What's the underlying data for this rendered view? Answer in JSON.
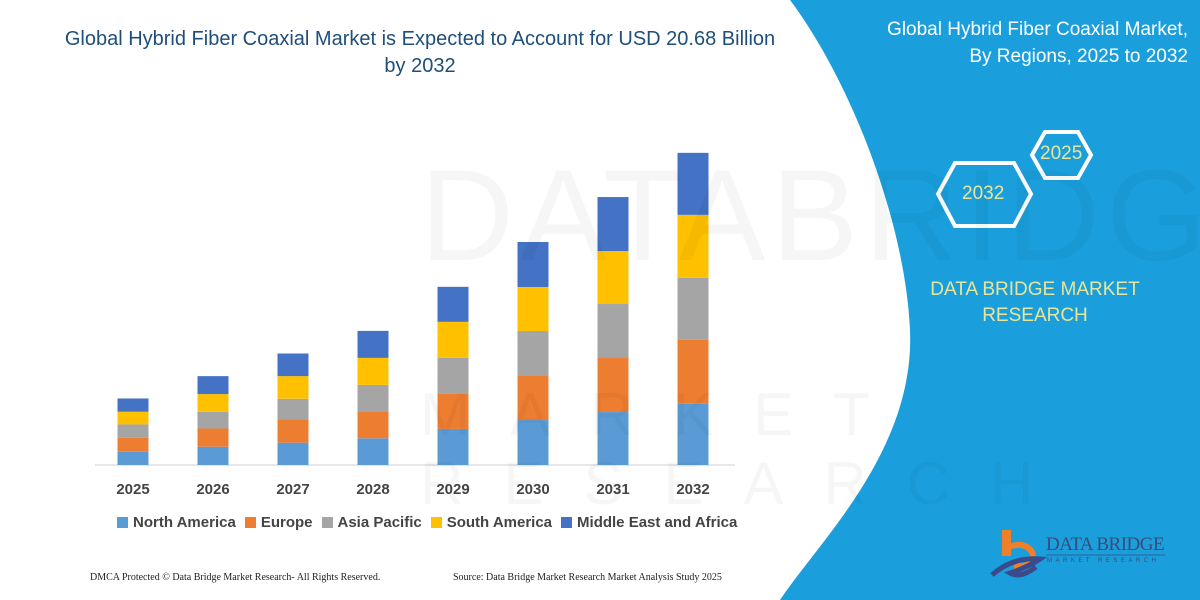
{
  "title": "Global Hybrid Fiber Coaxial Market is Expected to Account for USD 20.68 Billion by 2032",
  "side_panel": {
    "title_line1": "Global Hybrid Fiber Coaxial Market,",
    "title_line2": "By Regions, 2025 to 2032",
    "hex_start": "2025",
    "hex_end": "2032",
    "brand_line1": "DATA BRIDGE MARKET",
    "brand_line2": "RESEARCH",
    "logo_name": "DATA BRIDGE",
    "logo_sub": "MARKET RESEARCH",
    "panel_color": "#1a9fdc"
  },
  "footer": {
    "left": "DMCA Protected © Data Bridge Market Research- All Rights Reserved.",
    "right": "Source: Data Bridge Market Research Market Analysis Study 2025"
  },
  "watermark": {
    "line1": "DATABRIDGE",
    "line2": "MARKET RESEARCH"
  },
  "chart_data": {
    "type": "bar",
    "stacked": true,
    "title": "Global Hybrid Fiber Coaxial Market is Expected to Account for USD 20.68 Billion by 2032",
    "xlabel": "",
    "ylabel": "",
    "ylim": [
      0,
      20.68
    ],
    "grid": false,
    "legend_position": "bottom",
    "categories": [
      "2025",
      "2026",
      "2027",
      "2028",
      "2029",
      "2030",
      "2031",
      "2032"
    ],
    "series": [
      {
        "name": "North America",
        "color": "#5b9bd5",
        "values": [
          0.88,
          1.21,
          1.48,
          1.77,
          2.39,
          2.98,
          3.51,
          4.09
        ]
      },
      {
        "name": "Europe",
        "color": "#ed7d31",
        "values": [
          0.93,
          1.21,
          1.54,
          1.77,
          2.32,
          2.92,
          3.58,
          4.2
        ]
      },
      {
        "name": "Asia Pacific",
        "color": "#a5a5a5",
        "values": [
          0.88,
          1.11,
          1.37,
          1.77,
          2.39,
          2.98,
          3.58,
          4.11
        ]
      },
      {
        "name": "South America",
        "color": "#ffc000",
        "values": [
          0.84,
          1.17,
          1.5,
          1.79,
          2.39,
          2.92,
          3.51,
          4.18
        ]
      },
      {
        "name": "Middle East and Africa",
        "color": "#4472c4",
        "values": [
          0.88,
          1.19,
          1.5,
          1.79,
          2.32,
          2.98,
          3.58,
          4.11
        ]
      }
    ]
  }
}
